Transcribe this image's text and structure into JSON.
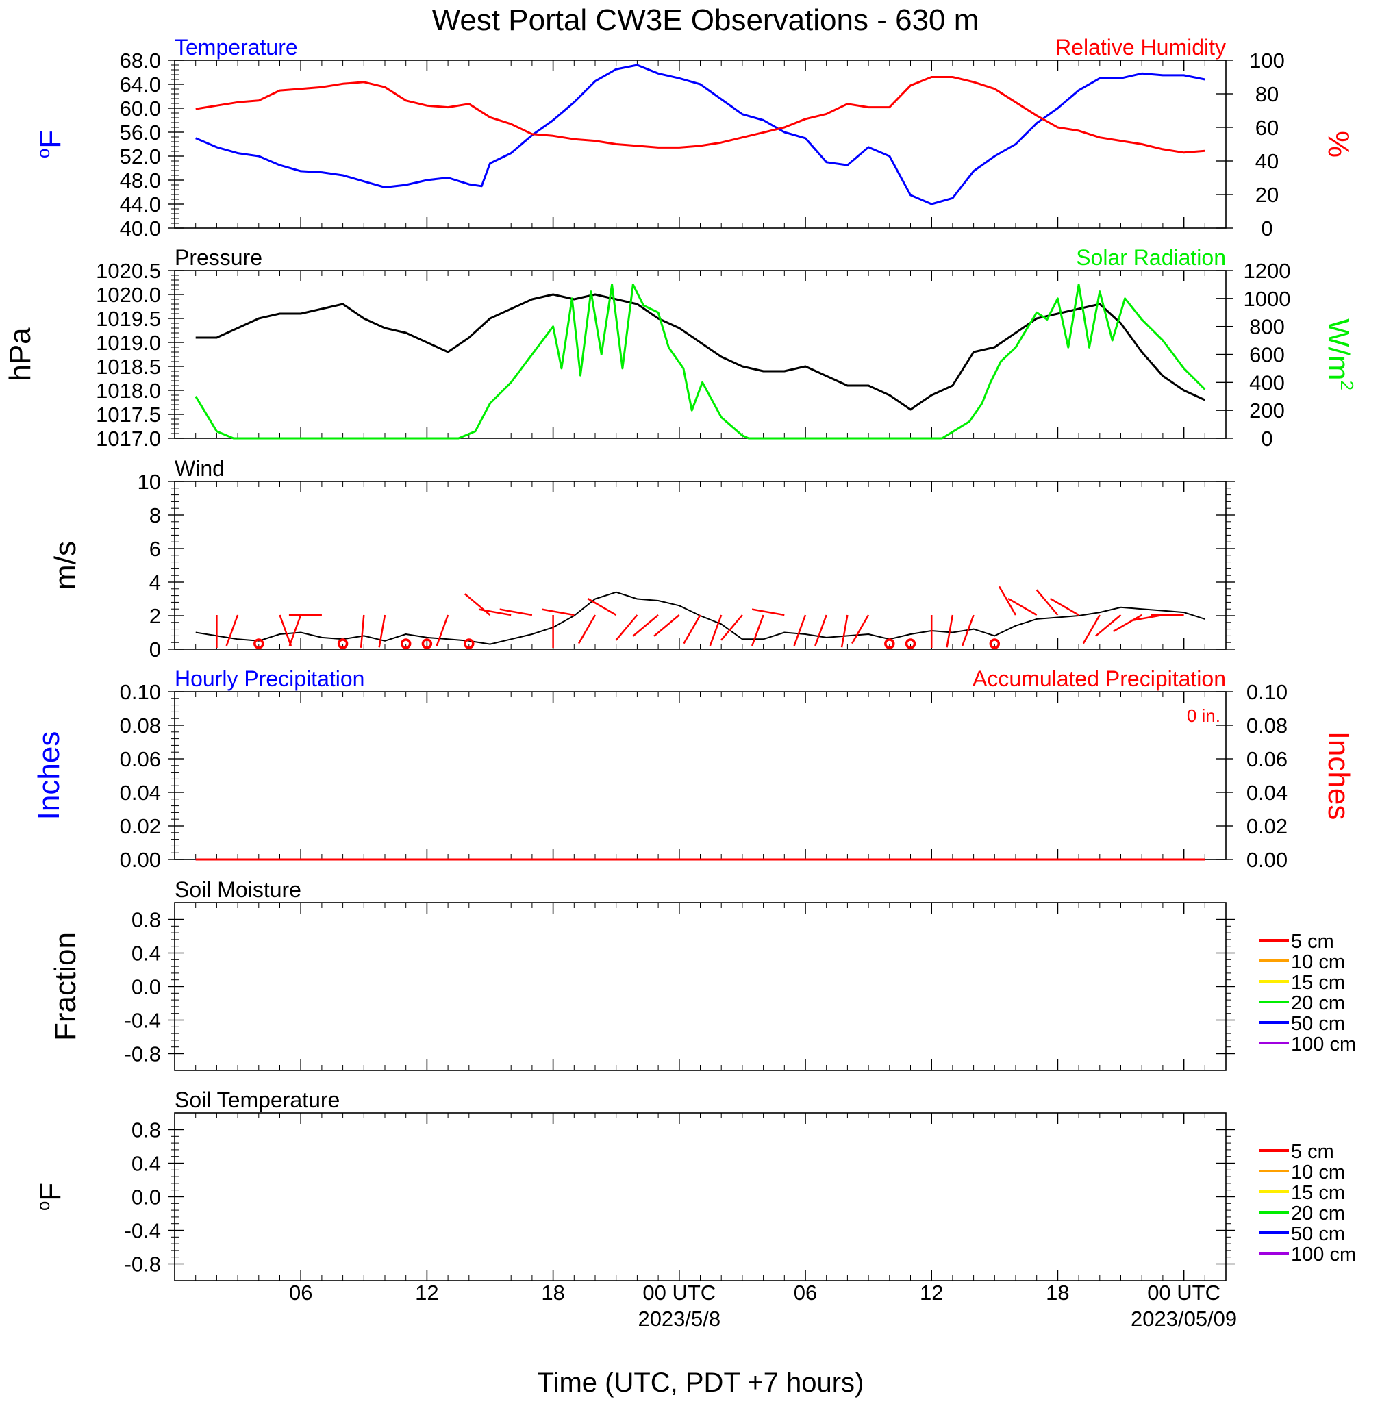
{
  "title": "West Portal CW3E Observations - 630 m",
  "x_axis": {
    "label": "Time (UTC, PDT +7 hours)",
    "tick_labels": [
      "06",
      "12",
      "18",
      "00 UTC",
      "06",
      "12",
      "18",
      "00 UTC"
    ],
    "date_labels": [
      "2023/5/8",
      "2023/05/09"
    ]
  },
  "colors": {
    "temperature": "#0000ff",
    "humidity": "#ff0000",
    "pressure": "#000000",
    "solar": "#00ee00",
    "wind": "#000000",
    "wind_barbs": "#ff0000",
    "precip_hourly": "#0000ff",
    "precip_accum": "#ff0000",
    "soil_5cm": "#ff0000",
    "soil_10cm": "#ffa000",
    "soil_15cm": "#ffee00",
    "soil_20cm": "#00ee00",
    "soil_50cm": "#0000ff",
    "soil_100cm": "#a000e0"
  },
  "chart_data": [
    {
      "type": "line",
      "panel": "temperature-humidity",
      "left_title": "Temperature",
      "right_title": "Relative Humidity",
      "ylabel_left": "oF",
      "ylabel_right": "%",
      "ylim_left": [
        40,
        68
      ],
      "yticks_left": [
        "68.0",
        "64.0",
        "60.0",
        "56.0",
        "52.0",
        "48.0",
        "44.0",
        "40.0"
      ],
      "ylim_right": [
        0,
        100
      ],
      "yticks_right": [
        "100",
        "80",
        "60",
        "40",
        "20",
        "0"
      ],
      "x_unit": "hours since 2023-05-07 01 UTC",
      "series": [
        {
          "name": "Temperature",
          "axis": "left",
          "x": [
            0,
            1,
            2,
            3,
            4,
            5,
            6,
            7,
            8,
            9,
            10,
            11,
            12,
            13,
            13.6,
            14,
            15,
            16,
            17,
            18,
            19,
            20,
            21,
            22,
            23,
            24,
            25,
            26,
            27,
            28,
            29,
            30,
            31,
            32,
            33,
            34,
            35,
            36,
            37,
            38,
            39,
            40,
            41,
            42,
            43,
            44,
            45,
            46,
            47,
            48
          ],
          "y": [
            55.0,
            53.5,
            52.5,
            52.0,
            50.5,
            49.5,
            49.3,
            48.8,
            47.8,
            46.8,
            47.2,
            48.0,
            48.4,
            47.3,
            47.0,
            50.8,
            52.5,
            55.5,
            58.0,
            61.0,
            64.5,
            66.5,
            67.2,
            65.8,
            65.0,
            64.0,
            61.5,
            59.0,
            58.0,
            56.0,
            55.0,
            51.0,
            50.5,
            53.5,
            52.0,
            45.5,
            44.0,
            45.0,
            49.5,
            52.0,
            54.0,
            57.5,
            60.0,
            63.0,
            65.0,
            65.0,
            65.8,
            65.5,
            65.5,
            64.8
          ]
        },
        {
          "name": "Relative Humidity",
          "axis": "right",
          "x": [
            0,
            1,
            2,
            3,
            4,
            5,
            6,
            7,
            8,
            9,
            10,
            11,
            12,
            13,
            14,
            15,
            16,
            17,
            18,
            19,
            20,
            21,
            22,
            23,
            24,
            25,
            26,
            27,
            28,
            29,
            30,
            31,
            32,
            33,
            34,
            35,
            36,
            37,
            38,
            39,
            40,
            41,
            42,
            43,
            44,
            45,
            46,
            47,
            48
          ],
          "y": [
            71,
            73,
            75,
            76,
            82,
            83,
            84,
            86,
            87,
            84,
            76,
            73,
            72,
            74,
            66,
            62,
            56,
            55,
            53,
            52,
            50,
            49,
            48,
            48,
            49,
            51,
            54,
            57,
            60,
            65,
            68,
            74,
            72,
            72,
            85,
            90,
            90,
            87,
            83,
            75,
            67,
            60,
            58,
            54,
            52,
            50,
            47,
            45,
            46
          ]
        }
      ]
    },
    {
      "type": "line",
      "panel": "pressure-solar",
      "left_title": "Pressure",
      "right_title": "Solar Radiation",
      "ylabel_left": "hPa",
      "ylabel_right": "W/m2",
      "ylim_left": [
        1017.0,
        1020.5
      ],
      "yticks_left": [
        "1020.5",
        "1020.0",
        "1019.5",
        "1019.0",
        "1018.5",
        "1018.0",
        "1017.5",
        "1017.0"
      ],
      "ylim_right": [
        0,
        1200
      ],
      "yticks_right": [
        "1200",
        "1000",
        "800",
        "600",
        "400",
        "200",
        "0"
      ],
      "x_unit": "hours since 2023-05-07 01 UTC",
      "series": [
        {
          "name": "Pressure",
          "axis": "left",
          "x": [
            0,
            1,
            2,
            3,
            4,
            5,
            6,
            7,
            8,
            9,
            10,
            11,
            12,
            13,
            14,
            15,
            16,
            17,
            18,
            19,
            20,
            21,
            22,
            23,
            24,
            25,
            26,
            27,
            28,
            29,
            30,
            31,
            32,
            33,
            34,
            35,
            36,
            37,
            38,
            39,
            40,
            41,
            42,
            43,
            44,
            45,
            46,
            47,
            48
          ],
          "y": [
            1019.1,
            1019.1,
            1019.3,
            1019.5,
            1019.6,
            1019.6,
            1019.7,
            1019.8,
            1019.5,
            1019.3,
            1019.2,
            1019.0,
            1018.8,
            1019.1,
            1019.5,
            1019.7,
            1019.9,
            1020.0,
            1019.9,
            1020.0,
            1019.9,
            1019.8,
            1019.5,
            1019.3,
            1019.0,
            1018.7,
            1018.5,
            1018.4,
            1018.4,
            1018.5,
            1018.3,
            1018.1,
            1018.1,
            1017.9,
            1017.6,
            1017.9,
            1018.1,
            1018.8,
            1018.9,
            1019.2,
            1019.5,
            1019.6,
            1019.7,
            1019.8,
            1019.4,
            1018.8,
            1018.3,
            1018.0,
            1017.8
          ]
        },
        {
          "name": "Solar Radiation",
          "axis": "right",
          "x": [
            0,
            0.4,
            1,
            1.8,
            12.5,
            13.3,
            14,
            15,
            16,
            17,
            17.4,
            17.9,
            18.3,
            18.8,
            19.3,
            19.8,
            20.3,
            20.8,
            21.3,
            22,
            22.5,
            23.2,
            23.6,
            24.1,
            25,
            26,
            26.3,
            35.5,
            36.8,
            37.4,
            37.8,
            38.3,
            39,
            40,
            40.5,
            41,
            41.5,
            42,
            42.5,
            43,
            43.6,
            44.2,
            45,
            46,
            47,
            48
          ],
          "y": [
            300,
            200,
            50,
            0,
            0,
            50,
            250,
            400,
            600,
            800,
            500,
            1000,
            450,
            1050,
            600,
            1100,
            500,
            1100,
            950,
            900,
            650,
            500,
            200,
            400,
            150,
            20,
            0,
            0,
            120,
            250,
            400,
            550,
            650,
            900,
            850,
            1000,
            650,
            1100,
            650,
            1050,
            700,
            1000,
            850,
            700,
            500,
            350
          ]
        }
      ]
    },
    {
      "type": "line",
      "panel": "wind",
      "left_title": "Wind",
      "ylabel_left": "m/s",
      "ylim_left": [
        0,
        10
      ],
      "yticks_left": [
        "10",
        "8",
        "6",
        "4",
        "2",
        "0"
      ],
      "x_unit": "hours since 2023-05-07 01 UTC",
      "series": [
        {
          "name": "Wind",
          "x": [
            0,
            1,
            2,
            3,
            4,
            5,
            6,
            7,
            8,
            9,
            10,
            11,
            12,
            13,
            14,
            15,
            16,
            17,
            18,
            19,
            20,
            21,
            22,
            23,
            24,
            25,
            26,
            27,
            28,
            29,
            30,
            31,
            32,
            33,
            34,
            35,
            36,
            37,
            38,
            39,
            40,
            41,
            42,
            43,
            44,
            45,
            46,
            47,
            48
          ],
          "y": [
            1.0,
            0.8,
            0.6,
            0.5,
            0.9,
            1.0,
            0.7,
            0.6,
            0.8,
            0.5,
            0.9,
            0.7,
            0.6,
            0.5,
            0.3,
            0.6,
            0.9,
            1.3,
            2.0,
            3.0,
            3.4,
            3.0,
            2.9,
            2.6,
            2.0,
            1.5,
            0.6,
            0.6,
            1.0,
            0.9,
            0.7,
            0.8,
            0.9,
            0.6,
            0.9,
            1.1,
            1.0,
            1.2,
            0.8,
            1.4,
            1.8,
            1.9,
            2.0,
            2.2,
            2.5,
            2.4,
            2.3,
            2.2,
            1.8
          ]
        }
      ],
      "barbs": {
        "x": [
          1,
          2,
          3,
          4,
          5,
          6,
          7,
          8,
          9,
          10,
          11,
          12,
          13,
          14,
          15,
          16,
          17,
          18,
          19,
          20,
          21,
          22,
          23,
          24,
          25,
          26,
          27,
          28,
          29,
          30,
          31,
          32,
          33,
          34,
          35,
          36,
          37,
          38,
          39,
          40,
          41,
          42,
          43,
          44,
          45,
          46,
          47
        ],
        "calm": [
          false,
          false,
          true,
          false,
          false,
          false,
          true,
          false,
          false,
          true,
          true,
          false,
          true,
          false,
          false,
          false,
          false,
          false,
          false,
          false,
          false,
          false,
          false,
          false,
          false,
          false,
          false,
          false,
          false,
          false,
          false,
          false,
          true,
          true,
          false,
          false,
          false,
          true,
          false,
          false,
          false,
          false,
          false,
          false,
          false,
          false,
          false
        ],
        "direction_deg": [
          180,
          200,
          0,
          160,
          200,
          270,
          0,
          185,
          190,
          0,
          0,
          200,
          0,
          310,
          280,
          280,
          180,
          280,
          210,
          300,
          220,
          230,
          230,
          210,
          200,
          220,
          200,
          280,
          200,
          200,
          190,
          210,
          0,
          0,
          180,
          190,
          200,
          0,
          330,
          300,
          320,
          300,
          210,
          230,
          240,
          260,
          270
        ],
        "speed_ms": [
          1.0,
          1.2,
          0,
          1.1,
          0.9,
          0.6,
          0,
          0.7,
          0.9,
          0,
          0,
          1.0,
          0,
          1.0,
          1.2,
          1.4,
          1.8,
          2.5,
          3.0,
          3.2,
          2.8,
          2.6,
          2.2,
          1.5,
          0.8,
          1.0,
          1.0,
          1.2,
          1.1,
          1.0,
          0.9,
          1.0,
          0,
          0,
          1.0,
          1.2,
          1.2,
          0,
          1.3,
          1.6,
          1.8,
          2.0,
          2.2,
          2.3,
          2.2,
          2.1,
          1.9
        ]
      }
    },
    {
      "type": "line",
      "panel": "precipitation",
      "left_title": "Hourly Precipitation",
      "right_title": "Accumulated Precipitation",
      "annotation": "0 in.",
      "ylabel_left": "Inches",
      "ylabel_right": "Inches",
      "ylim_left": [
        0,
        0.1
      ],
      "yticks_left": [
        "0.10",
        "0.08",
        "0.06",
        "0.04",
        "0.02",
        "0.00"
      ],
      "ylim_right": [
        0,
        0.1
      ],
      "yticks_right": [
        "0.10",
        "0.08",
        "0.06",
        "0.04",
        "0.02",
        "0.00"
      ],
      "x_unit": "hours since 2023-05-07 01 UTC",
      "series": [
        {
          "name": "Hourly Precipitation",
          "axis": "left",
          "x": [
            0,
            48
          ],
          "y": [
            0,
            0
          ]
        },
        {
          "name": "Accumulated Precipitation",
          "axis": "right",
          "x": [
            0,
            48
          ],
          "y": [
            0,
            0
          ]
        }
      ]
    },
    {
      "type": "line",
      "panel": "soil-moisture",
      "left_title": "Soil Moisture",
      "ylabel_left": "Fraction",
      "ylim_left": [
        -1,
        1
      ],
      "yticks_left": [
        "0.8",
        "0.4",
        "0.0",
        "-0.4",
        "-0.8"
      ],
      "legend": [
        "5 cm",
        "10 cm",
        "15 cm",
        "20 cm",
        "50 cm",
        "100 cm"
      ],
      "legend_placement": "right",
      "series": []
    },
    {
      "type": "line",
      "panel": "soil-temperature",
      "left_title": "Soil Temperature",
      "ylabel_left": "oF",
      "ylim_left": [
        -1,
        1
      ],
      "yticks_left": [
        "0.8",
        "0.4",
        "0.0",
        "-0.4",
        "-0.8"
      ],
      "legend": [
        "5 cm",
        "10 cm",
        "15 cm",
        "20 cm",
        "50 cm",
        "100 cm"
      ],
      "legend_placement": "right",
      "series": []
    }
  ]
}
